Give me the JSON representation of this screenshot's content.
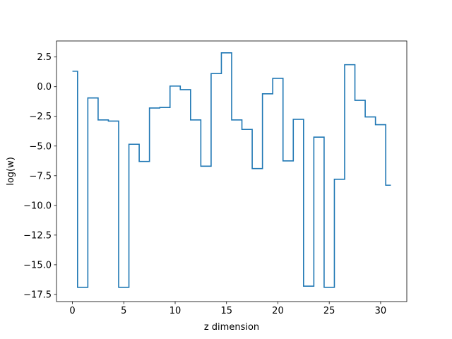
{
  "chart_data": {
    "type": "line",
    "drawstyle": "steps-mid",
    "xlabel": "z dimension",
    "ylabel": "log(w)",
    "xlim": [
      -1.55,
      32.55
    ],
    "ylim": [
      -18.1,
      3.85
    ],
    "xticks": [
      0,
      5,
      10,
      15,
      20,
      25,
      30
    ],
    "xtick_labels": [
      "0",
      "5",
      "10",
      "15",
      "20",
      "25",
      "30"
    ],
    "yticks": [
      2.5,
      0.0,
      -2.5,
      -5.0,
      -7.5,
      -10.0,
      -12.5,
      -15.0,
      -17.5
    ],
    "ytick_labels": [
      "2.5",
      "0.0",
      "−2.5",
      "−5.0",
      "−7.5",
      "−10.0",
      "−12.5",
      "−15.0",
      "−17.5"
    ],
    "grid": false,
    "series": [
      {
        "color": "#1f77b4",
        "x": [
          0,
          1,
          2,
          3,
          4,
          5,
          6,
          7,
          8,
          9,
          10,
          11,
          12,
          13,
          14,
          15,
          16,
          17,
          18,
          19,
          20,
          21,
          22,
          23,
          24,
          25,
          26,
          27,
          28,
          29,
          30,
          31
        ],
        "values": [
          1.3,
          -16.9,
          -0.95,
          -2.8,
          -2.9,
          -16.9,
          -4.85,
          -6.3,
          -1.8,
          -1.75,
          0.05,
          -0.25,
          -2.8,
          -6.7,
          1.1,
          2.85,
          -2.8,
          -3.6,
          -6.9,
          -0.6,
          0.7,
          -6.25,
          -2.75,
          -16.8,
          -4.25,
          -16.9,
          -7.8,
          1.85,
          -1.15,
          -2.55,
          -3.2,
          -8.3
        ]
      }
    ]
  }
}
